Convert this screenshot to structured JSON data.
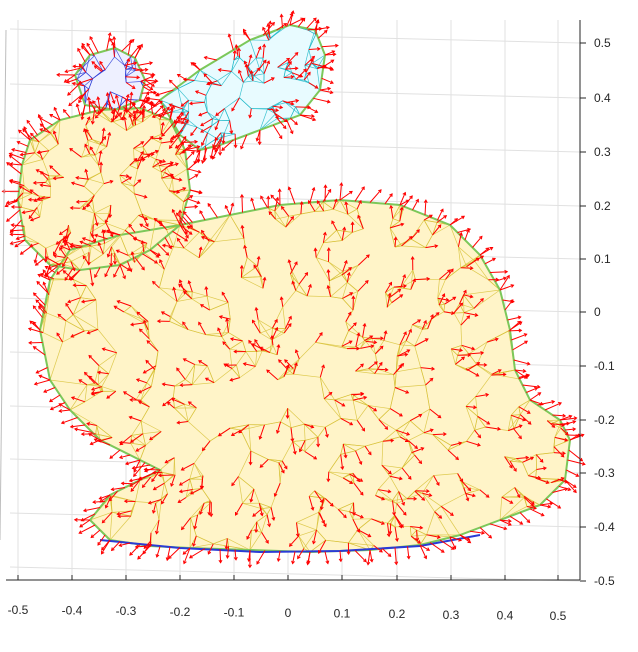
{
  "chart_data": {
    "type": "scatter",
    "description_of_marks": "3D triangulated mesh of the Stanford bunny with vertex normal arrows",
    "x_axis": {
      "ticks": [
        "-0.5",
        "-0.4",
        "-0.3",
        "-0.2",
        "-0.1",
        "0",
        "0.1",
        "0.2",
        "0.3",
        "0.4",
        "0.5"
      ],
      "range": [
        -0.55,
        0.55
      ]
    },
    "y_axis": {
      "ticks": [
        "0.5",
        "0.4",
        "0.3",
        "0.2",
        "0.1",
        "0",
        "-0.1",
        "-0.2",
        "-0.3",
        "-0.4",
        "-0.5"
      ],
      "range": [
        -0.52,
        0.52
      ],
      "position": "right"
    },
    "grid": true,
    "colormap": "parula-like (blue → cyan → green → yellow)",
    "normal_arrow_color": "#ff0000",
    "mesh_edge_colors": [
      "#2a3bd6",
      "#1fb8c8",
      "#7cc85a",
      "#d8c23a",
      "#f2e64a"
    ],
    "axis_color": "#262626",
    "grid_color": "#e1e1e1"
  }
}
